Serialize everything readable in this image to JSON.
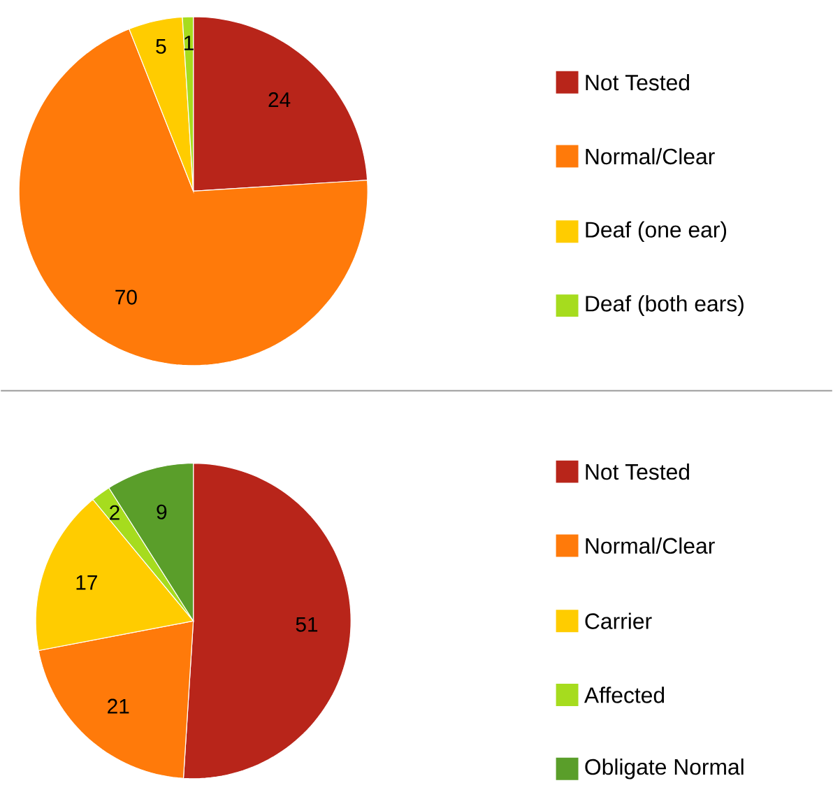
{
  "chart_data": [
    {
      "type": "pie",
      "categories": [
        "Not Tested",
        "Normal/Clear",
        "Deaf (one ear)",
        "Deaf (both ears)"
      ],
      "values": [
        24,
        70,
        5,
        1
      ],
      "colors": [
        "#b8251a",
        "#ff7a0a",
        "#ffcc00",
        "#a6dc1e"
      ],
      "data_labels": true,
      "legend": "right"
    },
    {
      "type": "pie",
      "categories": [
        "Not Tested",
        "Normal/Clear",
        "Carrier",
        "Affected",
        "Obligate Normal"
      ],
      "values": [
        51,
        21,
        17,
        2,
        9
      ],
      "colors": [
        "#b8251a",
        "#ff7a0a",
        "#ffcc00",
        "#a6dc1e",
        "#5a9e2a"
      ],
      "data_labels": true,
      "legend": "right"
    }
  ]
}
